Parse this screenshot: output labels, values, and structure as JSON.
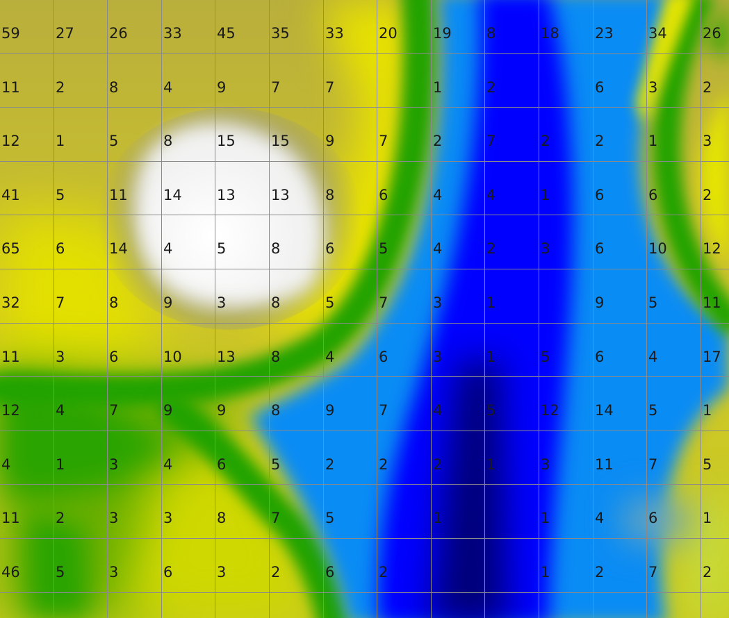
{
  "grid": {
    "rows": 11,
    "cols": 14,
    "values": [
      [
        "59",
        "27",
        "26",
        "33",
        "45",
        "35",
        "33",
        "20",
        "19",
        "8",
        "18",
        "23",
        "34",
        "26"
      ],
      [
        "11",
        "2",
        "8",
        "4",
        "9",
        "7",
        "7",
        "",
        "1",
        "2",
        "",
        "6",
        "3",
        "2"
      ],
      [
        "12",
        "1",
        "5",
        "8",
        "15",
        "15",
        "9",
        "7",
        "2",
        "7",
        "2",
        "2",
        "1",
        "3"
      ],
      [
        "41",
        "5",
        "11",
        "14",
        "13",
        "13",
        "8",
        "6",
        "4",
        "4",
        "1",
        "6",
        "6",
        "2"
      ],
      [
        "65",
        "6",
        "14",
        "4",
        "5",
        "8",
        "6",
        "5",
        "4",
        "2",
        "3",
        "6",
        "10",
        "12"
      ],
      [
        "32",
        "7",
        "8",
        "9",
        "3",
        "8",
        "5",
        "7",
        "3",
        "1",
        "",
        "9",
        "5",
        "11"
      ],
      [
        "11",
        "3",
        "6",
        "10",
        "13",
        "8",
        "4",
        "6",
        "3",
        "1",
        "5",
        "6",
        "4",
        "17"
      ],
      [
        "12",
        "4",
        "7",
        "9",
        "9",
        "8",
        "9",
        "7",
        "4",
        "5",
        "12",
        "14",
        "5",
        "1"
      ],
      [
        "4",
        "1",
        "3",
        "4",
        "6",
        "5",
        "2",
        "2",
        "2",
        "1",
        "3",
        "11",
        "7",
        "5"
      ],
      [
        "11",
        "2",
        "3",
        "3",
        "8",
        "7",
        "5",
        "",
        "1",
        "",
        "1",
        "4",
        "6",
        "1"
      ],
      [
        "46",
        "5",
        "3",
        "6",
        "3",
        "2",
        "6",
        "2",
        "",
        "",
        "1",
        "2",
        "7",
        "2"
      ]
    ]
  },
  "colors": {
    "grid_line": "#8a8a8a",
    "label": "#1a1a1a",
    "deep_blue": "#00007a",
    "blue": "#0000ff",
    "light_blue": "#0a8cf5",
    "green": "#22a300",
    "yellow": "#e6e600",
    "olive": "#b0aa3a",
    "white": "#ffffff"
  }
}
